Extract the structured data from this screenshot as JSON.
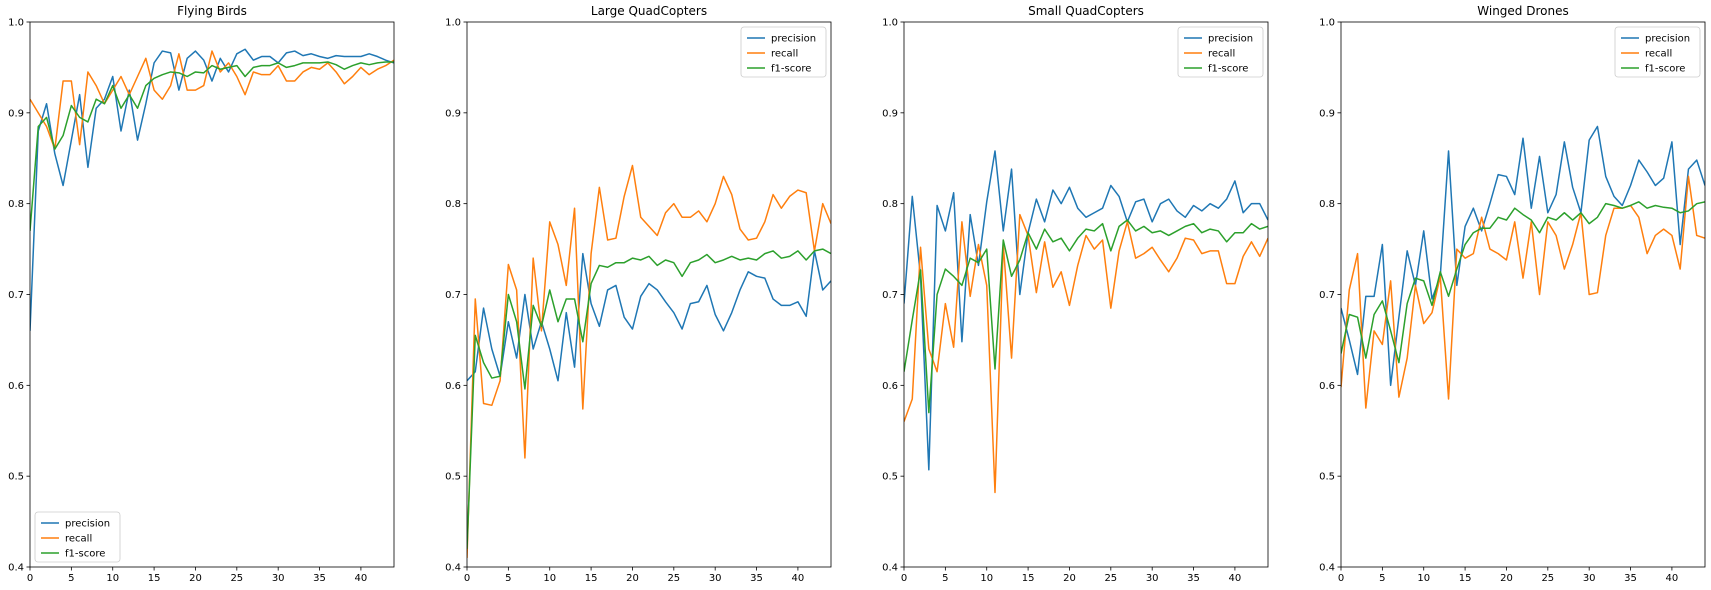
{
  "chart_data": [
    {
      "type": "line",
      "title": "Flying Birds",
      "xlabel": "",
      "ylabel": "",
      "xlim": [
        0,
        44
      ],
      "ylim": [
        0.4,
        1.0
      ],
      "xticks": [
        0,
        5,
        10,
        15,
        20,
        25,
        30,
        35,
        40
      ],
      "yticks": [
        0.4,
        0.5,
        0.6,
        0.7,
        0.8,
        0.9,
        1.0
      ],
      "legend": "lower-left",
      "series": [
        {
          "name": "precision",
          "color": "#1f77b4",
          "values": [
            0.66,
            0.88,
            0.91,
            0.855,
            0.82,
            0.87,
            0.92,
            0.84,
            0.905,
            0.915,
            0.94,
            0.88,
            0.925,
            0.87,
            0.91,
            0.955,
            0.968,
            0.966,
            0.925,
            0.96,
            0.968,
            0.958,
            0.935,
            0.96,
            0.945,
            0.965,
            0.97,
            0.958,
            0.962,
            0.962,
            0.955,
            0.966,
            0.968,
            0.963,
            0.965,
            0.962,
            0.96,
            0.963,
            0.962,
            0.962,
            0.962,
            0.965,
            0.962,
            0.958,
            0.955
          ]
        },
        {
          "name": "recall",
          "color": "#ff7f0e",
          "values": [
            0.915,
            0.9,
            0.885,
            0.86,
            0.935,
            0.935,
            0.865,
            0.945,
            0.93,
            0.91,
            0.925,
            0.94,
            0.92,
            0.94,
            0.96,
            0.925,
            0.915,
            0.93,
            0.965,
            0.925,
            0.925,
            0.93,
            0.968,
            0.945,
            0.955,
            0.94,
            0.92,
            0.945,
            0.942,
            0.942,
            0.952,
            0.935,
            0.935,
            0.945,
            0.95,
            0.948,
            0.955,
            0.945,
            0.932,
            0.94,
            0.95,
            0.942,
            0.948,
            0.952,
            0.958
          ]
        },
        {
          "name": "f1-score",
          "color": "#2ca02c",
          "values": [
            0.77,
            0.885,
            0.895,
            0.86,
            0.875,
            0.908,
            0.895,
            0.89,
            0.915,
            0.91,
            0.93,
            0.905,
            0.92,
            0.905,
            0.93,
            0.938,
            0.942,
            0.945,
            0.944,
            0.94,
            0.945,
            0.944,
            0.952,
            0.948,
            0.95,
            0.952,
            0.94,
            0.95,
            0.952,
            0.952,
            0.955,
            0.95,
            0.952,
            0.955,
            0.955,
            0.955,
            0.956,
            0.953,
            0.948,
            0.952,
            0.955,
            0.953,
            0.955,
            0.956,
            0.956
          ]
        }
      ]
    },
    {
      "type": "line",
      "title": "Large QuadCopters",
      "xlabel": "",
      "ylabel": "",
      "xlim": [
        0,
        44
      ],
      "ylim": [
        0.4,
        1.0
      ],
      "xticks": [
        0,
        5,
        10,
        15,
        20,
        25,
        30,
        35,
        40
      ],
      "yticks": [
        0.4,
        0.5,
        0.6,
        0.7,
        0.8,
        0.9,
        1.0
      ],
      "legend": "upper-right",
      "series": [
        {
          "name": "precision",
          "color": "#1f77b4",
          "values": [
            0.605,
            0.615,
            0.685,
            0.64,
            0.61,
            0.67,
            0.63,
            0.7,
            0.64,
            0.67,
            0.64,
            0.605,
            0.68,
            0.62,
            0.745,
            0.69,
            0.665,
            0.705,
            0.71,
            0.675,
            0.662,
            0.698,
            0.712,
            0.705,
            0.692,
            0.68,
            0.662,
            0.69,
            0.692,
            0.71,
            0.678,
            0.66,
            0.68,
            0.705,
            0.725,
            0.72,
            0.718,
            0.695,
            0.688,
            0.688,
            0.692,
            0.676,
            0.748,
            0.705,
            0.715
          ]
        },
        {
          "name": "recall",
          "color": "#ff7f0e",
          "values": [
            0.41,
            0.695,
            0.58,
            0.578,
            0.605,
            0.733,
            0.705,
            0.52,
            0.74,
            0.66,
            0.78,
            0.755,
            0.71,
            0.795,
            0.574,
            0.745,
            0.818,
            0.76,
            0.762,
            0.808,
            0.842,
            0.785,
            0.775,
            0.765,
            0.79,
            0.8,
            0.785,
            0.785,
            0.792,
            0.78,
            0.8,
            0.83,
            0.81,
            0.772,
            0.76,
            0.762,
            0.78,
            0.81,
            0.795,
            0.808,
            0.815,
            0.812,
            0.748,
            0.8,
            0.778
          ]
        },
        {
          "name": "f1-score",
          "color": "#2ca02c",
          "values": [
            0.42,
            0.655,
            0.625,
            0.608,
            0.61,
            0.7,
            0.67,
            0.596,
            0.688,
            0.665,
            0.705,
            0.67,
            0.695,
            0.695,
            0.648,
            0.712,
            0.732,
            0.73,
            0.735,
            0.735,
            0.74,
            0.738,
            0.742,
            0.732,
            0.738,
            0.735,
            0.72,
            0.735,
            0.738,
            0.744,
            0.735,
            0.738,
            0.742,
            0.738,
            0.74,
            0.738,
            0.745,
            0.748,
            0.74,
            0.742,
            0.748,
            0.738,
            0.748,
            0.75,
            0.745
          ]
        }
      ]
    },
    {
      "type": "line",
      "title": "Small QuadCopters",
      "xlabel": "",
      "ylabel": "",
      "xlim": [
        0,
        44
      ],
      "ylim": [
        0.4,
        1.0
      ],
      "xticks": [
        0,
        5,
        10,
        15,
        20,
        25,
        30,
        35,
        40
      ],
      "yticks": [
        0.4,
        0.5,
        0.6,
        0.7,
        0.8,
        0.9,
        1.0
      ],
      "legend": "upper-right",
      "series": [
        {
          "name": "precision",
          "color": "#1f77b4",
          "values": [
            0.69,
            0.808,
            0.72,
            0.507,
            0.798,
            0.77,
            0.812,
            0.648,
            0.788,
            0.732,
            0.802,
            0.858,
            0.77,
            0.838,
            0.7,
            0.768,
            0.805,
            0.78,
            0.815,
            0.8,
            0.818,
            0.795,
            0.785,
            0.79,
            0.795,
            0.82,
            0.808,
            0.78,
            0.802,
            0.805,
            0.78,
            0.8,
            0.805,
            0.792,
            0.785,
            0.798,
            0.792,
            0.8,
            0.795,
            0.805,
            0.825,
            0.79,
            0.8,
            0.8,
            0.782
          ]
        },
        {
          "name": "recall",
          "color": "#ff7f0e",
          "values": [
            0.56,
            0.585,
            0.752,
            0.64,
            0.615,
            0.69,
            0.642,
            0.78,
            0.698,
            0.755,
            0.71,
            0.482,
            0.755,
            0.63,
            0.788,
            0.765,
            0.702,
            0.758,
            0.708,
            0.725,
            0.688,
            0.732,
            0.765,
            0.75,
            0.76,
            0.685,
            0.748,
            0.78,
            0.74,
            0.745,
            0.752,
            0.738,
            0.725,
            0.74,
            0.762,
            0.76,
            0.745,
            0.748,
            0.748,
            0.712,
            0.712,
            0.742,
            0.758,
            0.742,
            0.762
          ]
        },
        {
          "name": "f1-score",
          "color": "#2ca02c",
          "values": [
            0.615,
            0.672,
            0.727,
            0.57,
            0.7,
            0.728,
            0.72,
            0.71,
            0.74,
            0.735,
            0.75,
            0.618,
            0.76,
            0.72,
            0.738,
            0.768,
            0.75,
            0.772,
            0.758,
            0.762,
            0.748,
            0.762,
            0.772,
            0.77,
            0.778,
            0.748,
            0.775,
            0.782,
            0.77,
            0.775,
            0.768,
            0.77,
            0.765,
            0.77,
            0.775,
            0.778,
            0.768,
            0.772,
            0.77,
            0.758,
            0.768,
            0.768,
            0.778,
            0.772,
            0.775
          ]
        }
      ]
    },
    {
      "type": "line",
      "title": "Winged Drones",
      "xlabel": "",
      "ylabel": "",
      "xlim": [
        0,
        44
      ],
      "ylim": [
        0.4,
        1.0
      ],
      "xticks": [
        0,
        5,
        10,
        15,
        20,
        25,
        30,
        35,
        40
      ],
      "yticks": [
        0.4,
        0.5,
        0.6,
        0.7,
        0.8,
        0.9,
        1.0
      ],
      "legend": "upper-right",
      "series": [
        {
          "name": "precision",
          "color": "#1f77b4",
          "values": [
            0.685,
            0.65,
            0.612,
            0.698,
            0.698,
            0.755,
            0.6,
            0.675,
            0.748,
            0.71,
            0.77,
            0.695,
            0.72,
            0.858,
            0.71,
            0.775,
            0.795,
            0.77,
            0.8,
            0.832,
            0.83,
            0.81,
            0.872,
            0.795,
            0.852,
            0.79,
            0.81,
            0.868,
            0.818,
            0.79,
            0.87,
            0.885,
            0.83,
            0.808,
            0.798,
            0.82,
            0.848,
            0.835,
            0.82,
            0.828,
            0.868,
            0.755,
            0.838,
            0.848,
            0.82
          ]
        },
        {
          "name": "recall",
          "color": "#ff7f0e",
          "values": [
            0.598,
            0.705,
            0.745,
            0.575,
            0.66,
            0.645,
            0.715,
            0.587,
            0.63,
            0.71,
            0.668,
            0.68,
            0.72,
            0.585,
            0.75,
            0.74,
            0.745,
            0.785,
            0.75,
            0.745,
            0.738,
            0.78,
            0.718,
            0.78,
            0.7,
            0.78,
            0.765,
            0.728,
            0.755,
            0.79,
            0.7,
            0.702,
            0.765,
            0.795,
            0.795,
            0.798,
            0.785,
            0.745,
            0.765,
            0.772,
            0.765,
            0.728,
            0.83,
            0.765,
            0.762
          ]
        },
        {
          "name": "f1-score",
          "color": "#2ca02c",
          "values": [
            0.635,
            0.678,
            0.675,
            0.63,
            0.678,
            0.693,
            0.66,
            0.625,
            0.69,
            0.718,
            0.715,
            0.688,
            0.725,
            0.698,
            0.728,
            0.755,
            0.768,
            0.773,
            0.773,
            0.785,
            0.782,
            0.795,
            0.788,
            0.782,
            0.768,
            0.785,
            0.782,
            0.79,
            0.782,
            0.79,
            0.778,
            0.785,
            0.8,
            0.798,
            0.795,
            0.798,
            0.802,
            0.795,
            0.798,
            0.796,
            0.795,
            0.79,
            0.792,
            0.8,
            0.802
          ]
        }
      ]
    }
  ]
}
